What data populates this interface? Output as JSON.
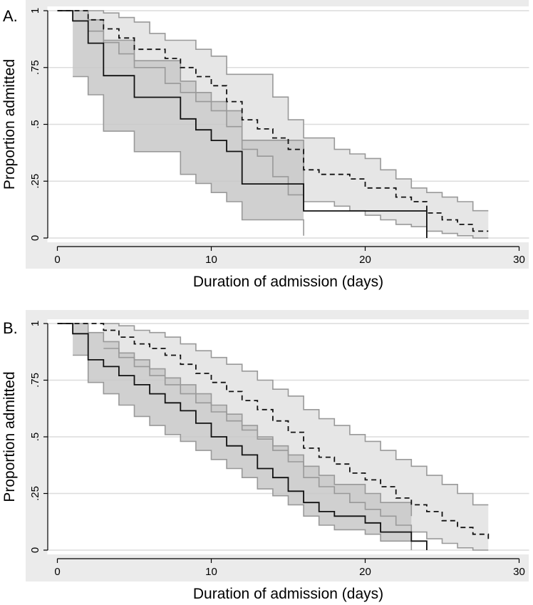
{
  "chart_data": [
    {
      "type": "line",
      "panel_label": "A.",
      "title": "",
      "xlabel": "Duration of admission (days)",
      "ylabel": "Proportion admitted",
      "xlim": [
        0,
        30
      ],
      "ylim": [
        0,
        1
      ],
      "xticks": [
        0,
        10,
        20,
        30
      ],
      "xtick_labels": [
        "0",
        "10",
        "20",
        "30"
      ],
      "yticks": [
        0,
        0.25,
        0.5,
        0.75,
        1
      ],
      "ytick_labels": [
        "0",
        ".25",
        ".5",
        ".75",
        "1"
      ],
      "grid": "horizontal",
      "legend": "none",
      "colors": {
        "ci_solid": "#c8c8c8",
        "ci_dashed": "#e6e6e6",
        "ci_edge": "#999999",
        "line": "#111111",
        "grid": "#dcdcdc",
        "plot_bg": "#ebebeb"
      },
      "series": [
        {
          "name": "solid",
          "style": "solid",
          "steps": [
            [
              0,
              1
            ],
            [
              1,
              0.955
            ],
            [
              2,
              0.857
            ],
            [
              3,
              0.714
            ],
            [
              5,
              0.619
            ],
            [
              8,
              0.524
            ],
            [
              9,
              0.476
            ],
            [
              10,
              0.429
            ],
            [
              11,
              0.381
            ],
            [
              12,
              0.238
            ],
            [
              16,
              0.119
            ],
            [
              24,
              0
            ]
          ],
          "x_end": 24,
          "ci_upper": [
            [
              1,
              1
            ],
            [
              2,
              0.96
            ],
            [
              3,
              0.87
            ],
            [
              5,
              0.78
            ],
            [
              8,
              0.69
            ],
            [
              9,
              0.64
            ],
            [
              10,
              0.6
            ],
            [
              11,
              0.56
            ],
            [
              12,
              0.43
            ],
            [
              16,
              0.18
            ]
          ],
          "ci_lower": [
            [
              1,
              0.71
            ],
            [
              2,
              0.63
            ],
            [
              3,
              0.47
            ],
            [
              5,
              0.38
            ],
            [
              8,
              0.28
            ],
            [
              9,
              0.24
            ],
            [
              10,
              0.2
            ],
            [
              11,
              0.16
            ],
            [
              12,
              0.08
            ],
            [
              16,
              0.01
            ]
          ],
          "ci_x_end": 16
        },
        {
          "name": "dashed",
          "style": "dashed",
          "steps": [
            [
              0,
              1
            ],
            [
              2,
              0.96
            ],
            [
              3,
              0.92
            ],
            [
              4,
              0.88
            ],
            [
              5,
              0.83
            ],
            [
              7,
              0.79
            ],
            [
              8,
              0.75
            ],
            [
              9,
              0.71
            ],
            [
              10,
              0.67
            ],
            [
              11,
              0.6
            ],
            [
              12,
              0.52
            ],
            [
              13,
              0.48
            ],
            [
              14,
              0.44
            ],
            [
              15,
              0.39
            ],
            [
              16,
              0.3
            ],
            [
              17,
              0.28
            ],
            [
              19,
              0.26
            ],
            [
              20,
              0.22
            ],
            [
              22,
              0.18
            ],
            [
              23,
              0.16
            ],
            [
              24,
              0.11
            ],
            [
              25,
              0.08
            ],
            [
              26,
              0.06
            ],
            [
              27,
              0.03
            ]
          ],
          "x_end": 28,
          "ci_upper": [
            [
              2,
              1
            ],
            [
              3,
              0.99
            ],
            [
              4,
              0.97
            ],
            [
              5,
              0.95
            ],
            [
              6,
              0.9
            ],
            [
              7,
              0.87
            ],
            [
              9,
              0.83
            ],
            [
              10,
              0.8
            ],
            [
              11,
              0.72
            ],
            [
              14,
              0.62
            ],
            [
              15,
              0.52
            ],
            [
              16,
              0.44
            ],
            [
              18,
              0.39
            ],
            [
              19,
              0.37
            ],
            [
              20,
              0.35
            ],
            [
              21,
              0.3
            ],
            [
              22,
              0.26
            ],
            [
              23,
              0.22
            ],
            [
              24,
              0.2
            ],
            [
              25,
              0.18
            ],
            [
              26,
              0.16
            ],
            [
              27,
              0.12
            ]
          ],
          "ci_lower": [
            [
              2,
              0.91
            ],
            [
              3,
              0.86
            ],
            [
              4,
              0.81
            ],
            [
              5,
              0.75
            ],
            [
              7,
              0.68
            ],
            [
              8,
              0.64
            ],
            [
              9,
              0.6
            ],
            [
              10,
              0.56
            ],
            [
              11,
              0.49
            ],
            [
              12,
              0.39
            ],
            [
              13,
              0.36
            ],
            [
              14,
              0.27
            ],
            [
              15,
              0.19
            ],
            [
              16,
              0.16
            ],
            [
              18,
              0.14
            ],
            [
              19,
              0.12
            ],
            [
              20,
              0.1
            ],
            [
              21,
              0.08
            ],
            [
              22,
              0.06
            ],
            [
              23,
              0.05
            ],
            [
              24,
              0.03
            ],
            [
              25,
              0.02
            ],
            [
              26,
              0.01
            ],
            [
              27,
              0
            ]
          ],
          "ci_x_end": 28
        }
      ]
    },
    {
      "type": "line",
      "panel_label": "B.",
      "title": "",
      "xlabel": "Duration of admission (days)",
      "ylabel": "Proportion admitted",
      "xlim": [
        0,
        30
      ],
      "ylim": [
        0,
        1
      ],
      "xticks": [
        0,
        10,
        20,
        30
      ],
      "xtick_labels": [
        "0",
        "10",
        "20",
        "30"
      ],
      "yticks": [
        0,
        0.25,
        0.5,
        0.75,
        1
      ],
      "ytick_labels": [
        "0",
        ".25",
        ".5",
        ".75",
        "1"
      ],
      "grid": "horizontal",
      "legend": "none",
      "colors": {
        "ci_solid": "#c8c8c8",
        "ci_dashed": "#e6e6e6",
        "ci_edge": "#999999",
        "line": "#111111",
        "grid": "#dcdcdc",
        "plot_bg": "#ebebeb"
      },
      "series": [
        {
          "name": "solid",
          "style": "solid",
          "steps": [
            [
              0,
              1
            ],
            [
              1,
              0.955
            ],
            [
              2,
              0.84
            ],
            [
              3,
              0.81
            ],
            [
              4,
              0.77
            ],
            [
              5,
              0.73
            ],
            [
              6,
              0.69
            ],
            [
              7,
              0.65
            ],
            [
              8,
              0.615
            ],
            [
              9,
              0.56
            ],
            [
              10,
              0.5
            ],
            [
              11,
              0.46
            ],
            [
              12,
              0.42
            ],
            [
              13,
              0.36
            ],
            [
              14,
              0.32
            ],
            [
              15,
              0.26
            ],
            [
              16,
              0.21
            ],
            [
              17,
              0.17
            ],
            [
              18,
              0.15
            ],
            [
              20,
              0.12
            ],
            [
              21,
              0.08
            ],
            [
              23,
              0.04
            ],
            [
              24,
              0
            ]
          ],
          "x_end": 24,
          "ci_upper": [
            [
              1,
              1
            ],
            [
              2,
              0.96
            ],
            [
              3,
              0.92
            ],
            [
              4,
              0.87
            ],
            [
              5,
              0.84
            ],
            [
              6,
              0.8
            ],
            [
              7,
              0.76
            ],
            [
              8,
              0.73
            ],
            [
              9,
              0.69
            ],
            [
              10,
              0.64
            ],
            [
              11,
              0.6
            ],
            [
              12,
              0.55
            ],
            [
              13,
              0.5
            ],
            [
              14,
              0.46
            ],
            [
              15,
              0.42
            ],
            [
              16,
              0.37
            ],
            [
              17,
              0.33
            ],
            [
              18,
              0.29
            ],
            [
              20,
              0.25
            ],
            [
              21,
              0.21
            ],
            [
              23,
              0.15
            ]
          ],
          "ci_lower": [
            [
              1,
              0.86
            ],
            [
              2,
              0.74
            ],
            [
              3,
              0.69
            ],
            [
              4,
              0.64
            ],
            [
              5,
              0.59
            ],
            [
              6,
              0.55
            ],
            [
              7,
              0.51
            ],
            [
              8,
              0.48
            ],
            [
              9,
              0.44
            ],
            [
              10,
              0.4
            ],
            [
              11,
              0.36
            ],
            [
              12,
              0.32
            ],
            [
              13,
              0.27
            ],
            [
              14,
              0.24
            ],
            [
              15,
              0.2
            ],
            [
              16,
              0.15
            ],
            [
              17,
              0.11
            ],
            [
              18,
              0.09
            ],
            [
              20,
              0.07
            ],
            [
              21,
              0.04
            ],
            [
              23,
              0
            ]
          ],
          "ci_x_end": 23
        },
        {
          "name": "dashed",
          "style": "dashed",
          "steps": [
            [
              0,
              1
            ],
            [
              3,
              0.97
            ],
            [
              4,
              0.94
            ],
            [
              5,
              0.91
            ],
            [
              6,
              0.89
            ],
            [
              7,
              0.86
            ],
            [
              8,
              0.82
            ],
            [
              9,
              0.78
            ],
            [
              10,
              0.74
            ],
            [
              11,
              0.7
            ],
            [
              12,
              0.66
            ],
            [
              13,
              0.62
            ],
            [
              14,
              0.57
            ],
            [
              15,
              0.52
            ],
            [
              16,
              0.45
            ],
            [
              17,
              0.41
            ],
            [
              18,
              0.38
            ],
            [
              19,
              0.34
            ],
            [
              20,
              0.31
            ],
            [
              21,
              0.28
            ],
            [
              22,
              0.23
            ],
            [
              23,
              0.2
            ],
            [
              24,
              0.17
            ],
            [
              25,
              0.13
            ],
            [
              26,
              0.1
            ],
            [
              27,
              0.07
            ],
            [
              28,
              0.04
            ]
          ],
          "x_end": 28,
          "ci_upper": [
            [
              3,
              1
            ],
            [
              4,
              0.99
            ],
            [
              5,
              0.97
            ],
            [
              6,
              0.96
            ],
            [
              7,
              0.94
            ],
            [
              8,
              0.91
            ],
            [
              9,
              0.88
            ],
            [
              10,
              0.85
            ],
            [
              11,
              0.82
            ],
            [
              12,
              0.79
            ],
            [
              13,
              0.75
            ],
            [
              14,
              0.71
            ],
            [
              15,
              0.68
            ],
            [
              16,
              0.62
            ],
            [
              17,
              0.58
            ],
            [
              18,
              0.55
            ],
            [
              19,
              0.51
            ],
            [
              20,
              0.48
            ],
            [
              21,
              0.44
            ],
            [
              22,
              0.4
            ],
            [
              23,
              0.37
            ],
            [
              24,
              0.33
            ],
            [
              25,
              0.29
            ],
            [
              26,
              0.25
            ],
            [
              27,
              0.2
            ]
          ],
          "ci_lower": [
            [
              3,
              0.89
            ],
            [
              4,
              0.85
            ],
            [
              5,
              0.81
            ],
            [
              6,
              0.77
            ],
            [
              7,
              0.73
            ],
            [
              8,
              0.69
            ],
            [
              9,
              0.65
            ],
            [
              10,
              0.61
            ],
            [
              11,
              0.57
            ],
            [
              12,
              0.53
            ],
            [
              13,
              0.49
            ],
            [
              14,
              0.44
            ],
            [
              15,
              0.39
            ],
            [
              16,
              0.32
            ],
            [
              17,
              0.28
            ],
            [
              18,
              0.25
            ],
            [
              19,
              0.21
            ],
            [
              20,
              0.18
            ],
            [
              21,
              0.15
            ],
            [
              22,
              0.11
            ],
            [
              23,
              0.08
            ],
            [
              24,
              0.05
            ],
            [
              25,
              0.03
            ],
            [
              26,
              0.01
            ],
            [
              27,
              0
            ]
          ],
          "ci_x_end": 28
        }
      ]
    }
  ]
}
